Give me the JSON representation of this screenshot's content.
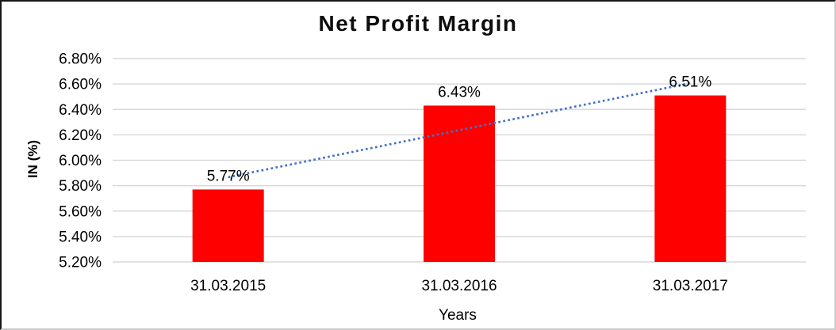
{
  "chart_data": {
    "type": "bar",
    "title": "Net Profit Margin",
    "xlabel": "Years",
    "ylabel": "IN (%)",
    "categories": [
      "31.03.2015",
      "31.03.2016",
      "31.03.2017"
    ],
    "values": [
      5.77,
      6.43,
      6.51
    ],
    "data_labels": [
      "5.77%",
      "6.43%",
      "6.51%"
    ],
    "y_tick_labels": [
      "6.80%",
      "6.60%",
      "6.40%",
      "6.20%",
      "6.00%",
      "5.80%",
      "5.60%",
      "5.40%",
      "5.20%"
    ],
    "ylim": [
      5.2,
      6.8
    ],
    "y_tick_step": 0.2,
    "grid": true,
    "legend": "none",
    "colors": {
      "bar": "#ff0000",
      "trendline": "#4472c4",
      "gridline": "#d9d9d9",
      "text": "#000000"
    },
    "trendline": {
      "type": "linear",
      "style": "dotted"
    }
  }
}
